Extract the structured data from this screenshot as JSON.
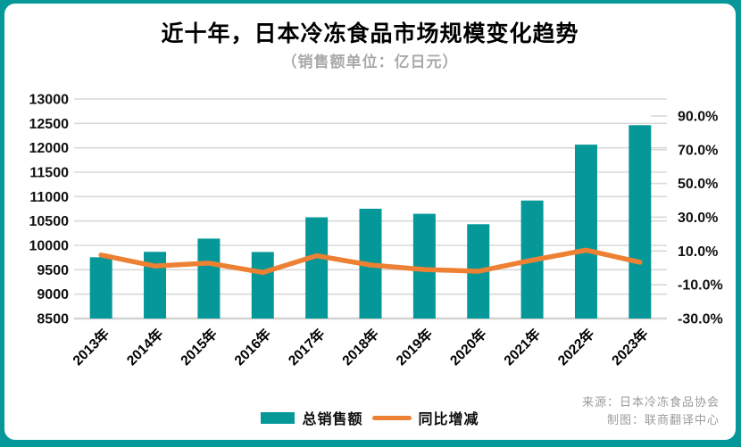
{
  "page": {
    "background_color": "#069898",
    "card_color": "#ffffff"
  },
  "header": {
    "title": "近十年，日本冷冻食品市场规模变化趋势",
    "subtitle": "（销售额单位：亿日元）"
  },
  "chart_data": {
    "type": "bar",
    "subtype": "combo-bar-line-dual-axis",
    "title": "近十年，日本冷冻食品市场规模变化趋势",
    "subtitle": "（销售额单位：亿日元）",
    "categories": [
      "2013年",
      "2014年",
      "2015年",
      "2016年",
      "2017年",
      "2018年",
      "2019年",
      "2020年",
      "2021年",
      "2022年",
      "2023年"
    ],
    "series": [
      {
        "name": "总销售额",
        "chart": "bar",
        "axis": "left",
        "color": "#069898",
        "values": [
          9756,
          9867,
          10139,
          9864,
          10575,
          10751,
          10647,
          10434,
          10919,
          12065,
          12464
        ]
      },
      {
        "name": "同比增减",
        "chart": "line",
        "axis": "right",
        "color": "#ED8033",
        "values_percent": [
          7.6,
          1.1,
          2.8,
          -2.7,
          7.2,
          1.7,
          -1.0,
          -2.0,
          4.6,
          10.5,
          3.3
        ]
      }
    ],
    "left_axis": {
      "min": 8500,
      "max": 13000,
      "step": 500,
      "tick_labels": [
        "8500",
        "9000",
        "9500",
        "10000",
        "10500",
        "11000",
        "11500",
        "12000",
        "12500",
        "13000"
      ]
    },
    "right_axis": {
      "min": -30,
      "max": 100,
      "tick_values": [
        -30,
        -10,
        10,
        30,
        50,
        70,
        90
      ],
      "tick_labels": [
        "-30.0%",
        "-10.0%",
        "10.0%",
        "30.0%",
        "50.0%",
        "70.0%",
        "90.0%"
      ]
    },
    "grid": true,
    "gridline_color": "#d9d9d9",
    "axisline_color": "#d2d2d2",
    "legend_position": "bottom"
  },
  "footer": {
    "source": "来源：日本冷冻食品协会",
    "credit": "制图：联商翻译中心"
  }
}
